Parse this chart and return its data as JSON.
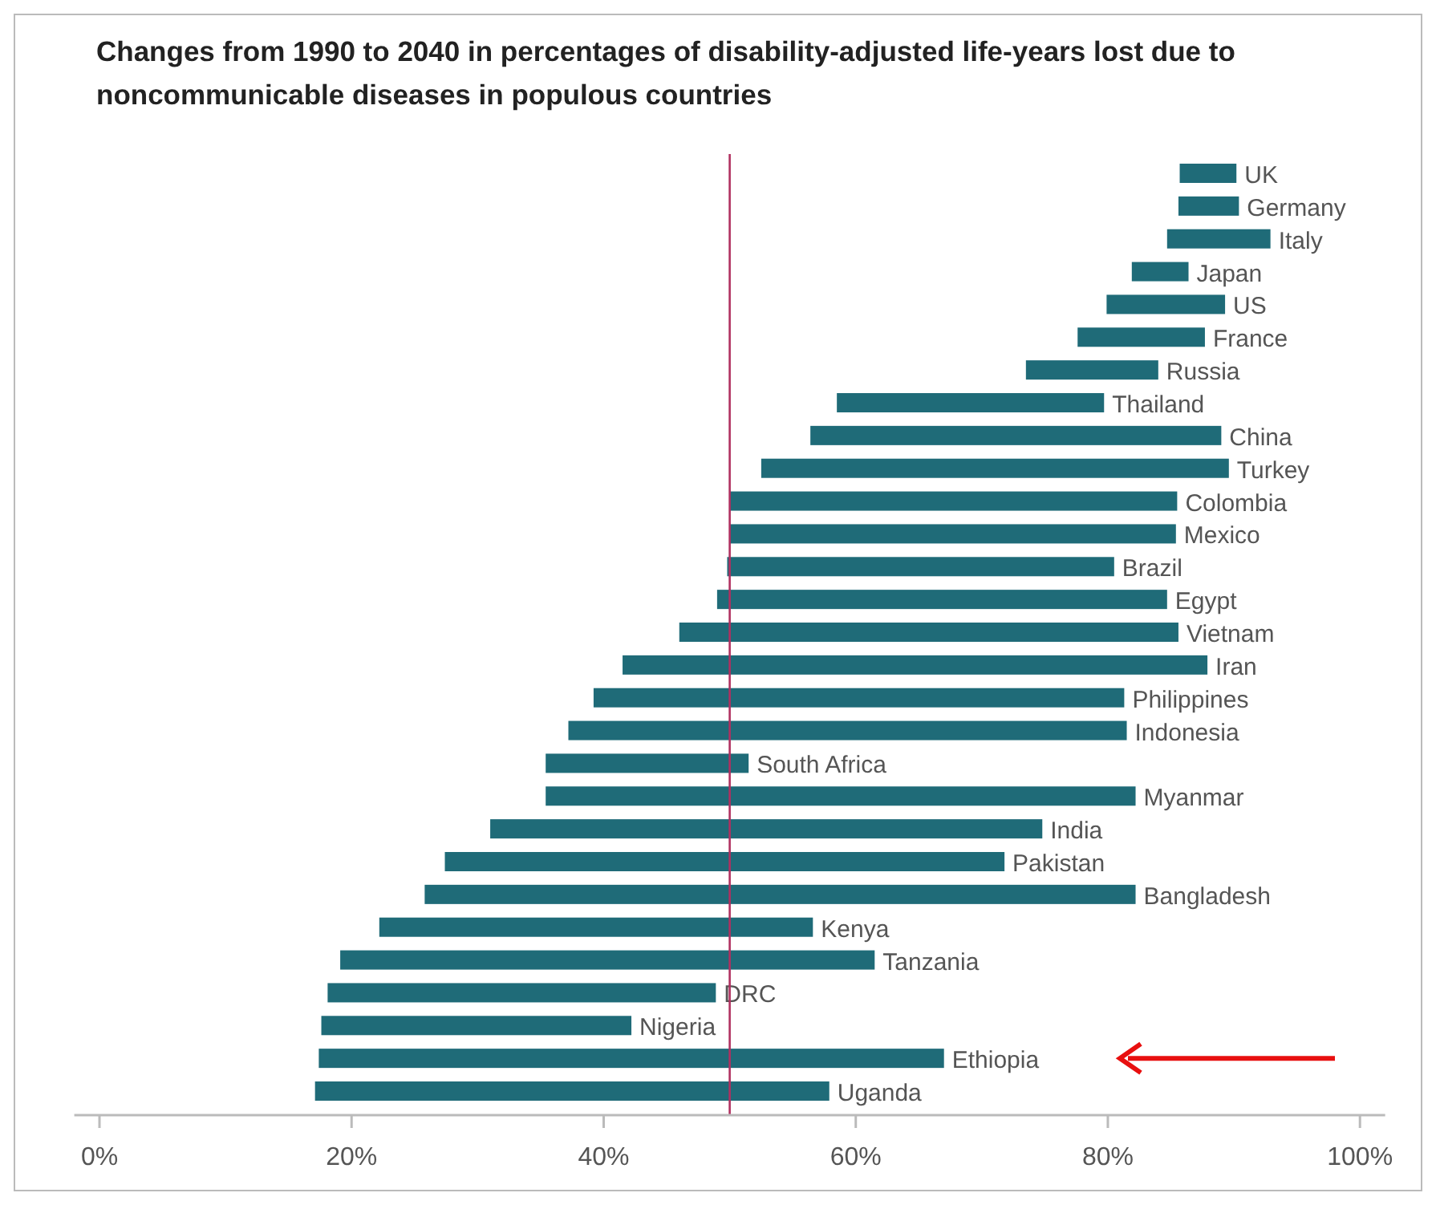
{
  "chart_data": {
    "type": "bar",
    "orientation": "horizontal",
    "title": "Changes from 1990 to 2040 in percentages of disability-adjusted life-years lost due to noncommunicable diseases in populous countries",
    "categories": [
      "UK",
      "Germany",
      "Italy",
      "Japan",
      "US",
      "France",
      "Russia",
      "Thailand",
      "China",
      "Turkey",
      "Colombia",
      "Mexico",
      "Brazil",
      "Egypt",
      "Vietnam",
      "Iran",
      "Philippines",
      "Indonesia",
      "South Africa",
      "Myanmar",
      "India",
      "Pakistan",
      "Bangladesh",
      "Kenya",
      "Tanzania",
      "DRC",
      "Nigeria",
      "Ethiopia",
      "Uganda"
    ],
    "base": [
      85.7,
      85.6,
      84.7,
      81.9,
      79.9,
      77.6,
      73.5,
      58.5,
      56.4,
      52.5,
      50.0,
      50.0,
      49.8,
      49.0,
      46.0,
      41.5,
      39.2,
      37.2,
      35.4,
      35.4,
      31.0,
      27.4,
      25.8,
      22.2,
      19.1,
      18.1,
      17.6,
      17.4,
      17.1
    ],
    "values": [
      4.5,
      4.8,
      8.2,
      4.5,
      9.4,
      10.1,
      10.5,
      21.2,
      32.6,
      37.1,
      35.5,
      35.4,
      30.7,
      35.7,
      39.6,
      46.4,
      42.1,
      44.3,
      16.1,
      46.8,
      43.8,
      44.4,
      56.4,
      34.4,
      42.4,
      30.8,
      24.6,
      49.6,
      40.8
    ],
    "color": "#1f6b78",
    "xlim": [
      -2,
      102
    ],
    "xticks": [
      {
        "value": 0,
        "label": "0%"
      },
      {
        "value": 20,
        "label": "20%"
      },
      {
        "value": 40,
        "label": "40%"
      },
      {
        "value": 60,
        "label": "60%"
      },
      {
        "value": 80,
        "label": "80%"
      },
      {
        "value": 100,
        "label": "100%"
      }
    ],
    "ref_lines": [
      {
        "axis": "x",
        "value": 50,
        "color": "#b03060"
      }
    ],
    "grid": false,
    "tick_labels": "x"
  }
}
